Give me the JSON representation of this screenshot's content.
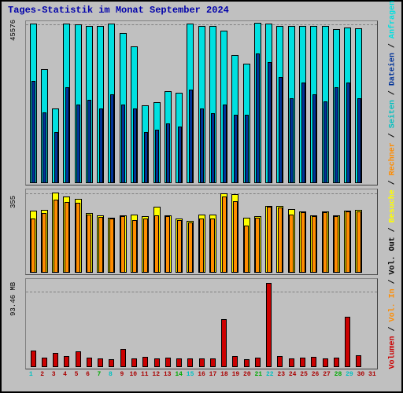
{
  "title": "Tages-Statistik im Monat September 2024",
  "colors": {
    "frame_bg": "#c0c0c0",
    "panel_bg": "#c0c0c0",
    "title_color": "#0000aa",
    "anfragen": "#00e0e0",
    "dateien": "#003399",
    "seiten": "#00c0c0",
    "besuche": "#ffff00",
    "rechner": "#ff8c00",
    "vol_in": "#cc0000",
    "vol_out": "#000000",
    "volumen": "#cc0000",
    "border": "#000000"
  },
  "panel1": {
    "y_label": "45576",
    "max": 47000,
    "days": [
      {
        "anfragen": 46700,
        "dateien": 30000
      },
      {
        "anfragen": 33300,
        "dateien": 20800
      },
      {
        "anfragen": 22000,
        "dateien": 15000
      },
      {
        "anfragen": 46800,
        "dateien": 28000
      },
      {
        "anfragen": 46500,
        "dateien": 23000
      },
      {
        "anfragen": 46000,
        "dateien": 24500
      },
      {
        "anfragen": 46000,
        "dateien": 22000
      },
      {
        "anfragen": 46700,
        "dateien": 26000
      },
      {
        "anfragen": 44000,
        "dateien": 23000
      },
      {
        "anfragen": 40000,
        "dateien": 22000
      },
      {
        "anfragen": 22700,
        "dateien": 15000
      },
      {
        "anfragen": 23700,
        "dateien": 15600
      },
      {
        "anfragen": 27000,
        "dateien": 17500
      },
      {
        "anfragen": 26500,
        "dateien": 16500
      },
      {
        "anfragen": 46700,
        "dateien": 27500
      },
      {
        "anfragen": 46000,
        "dateien": 22000
      },
      {
        "anfragen": 46000,
        "dateien": 20500
      },
      {
        "anfragen": 44600,
        "dateien": 23000
      },
      {
        "anfragen": 37500,
        "dateien": 20000
      },
      {
        "anfragen": 35000,
        "dateien": 20000
      },
      {
        "anfragen": 47000,
        "dateien": 38000
      },
      {
        "anfragen": 46800,
        "dateien": 35500
      },
      {
        "anfragen": 46000,
        "dateien": 31000
      },
      {
        "anfragen": 46000,
        "dateien": 25000
      },
      {
        "anfragen": 46000,
        "dateien": 29500
      },
      {
        "anfragen": 46100,
        "dateien": 26000
      },
      {
        "anfragen": 46000,
        "dateien": 24000
      },
      {
        "anfragen": 45200,
        "dateien": 28000
      },
      {
        "anfragen": 45700,
        "dateien": 29500
      },
      {
        "anfragen": 45500,
        "dateien": 25000
      }
    ]
  },
  "panel2": {
    "y_label": "355",
    "max": 370,
    "days": [
      {
        "besuche": 280,
        "rechner": 245
      },
      {
        "besuche": 285,
        "rechner": 270
      },
      {
        "besuche": 363,
        "rechner": 330
      },
      {
        "besuche": 345,
        "rechner": 320
      },
      {
        "besuche": 335,
        "rechner": 315
      },
      {
        "besuche": 270,
        "rechner": 262
      },
      {
        "besuche": 260,
        "rechner": 253
      },
      {
        "besuche": 250,
        "rechner": 245
      },
      {
        "besuche": 260,
        "rechner": 255
      },
      {
        "besuche": 265,
        "rechner": 240
      },
      {
        "besuche": 255,
        "rechner": 245
      },
      {
        "besuche": 298,
        "rechner": 260
      },
      {
        "besuche": 260,
        "rechner": 255
      },
      {
        "besuche": 245,
        "rechner": 240
      },
      {
        "besuche": 235,
        "rechner": 228
      },
      {
        "besuche": 265,
        "rechner": 245
      },
      {
        "besuche": 265,
        "rechner": 245
      },
      {
        "besuche": 360,
        "rechner": 345
      },
      {
        "besuche": 355,
        "rechner": 325
      },
      {
        "besuche": 250,
        "rechner": 215
      },
      {
        "besuche": 255,
        "rechner": 248
      },
      {
        "besuche": 303,
        "rechner": 298
      },
      {
        "besuche": 302,
        "rechner": 295
      },
      {
        "besuche": 290,
        "rechner": 265
      },
      {
        "besuche": 278,
        "rechner": 275
      },
      {
        "besuche": 260,
        "rechner": 255
      },
      {
        "besuche": 278,
        "rechner": 275
      },
      {
        "besuche": 258,
        "rechner": 255
      },
      {
        "besuche": 280,
        "rechner": 278
      },
      {
        "besuche": 285,
        "rechner": 278
      }
    ]
  },
  "panel3": {
    "y_label": "93.46 MB",
    "max": 110,
    "days": [
      {
        "vol": 21
      },
      {
        "vol": 12
      },
      {
        "vol": 18
      },
      {
        "vol": 14
      },
      {
        "vol": 20
      },
      {
        "vol": 12
      },
      {
        "vol": 11
      },
      {
        "vol": 10
      },
      {
        "vol": 23
      },
      {
        "vol": 11
      },
      {
        "vol": 13
      },
      {
        "vol": 11
      },
      {
        "vol": 12
      },
      {
        "vol": 11
      },
      {
        "vol": 11
      },
      {
        "vol": 11
      },
      {
        "vol": 11
      },
      {
        "vol": 61
      },
      {
        "vol": 14
      },
      {
        "vol": 10
      },
      {
        "vol": 12
      },
      {
        "vol": 107
      },
      {
        "vol": 14
      },
      {
        "vol": 11
      },
      {
        "vol": 12
      },
      {
        "vol": 13
      },
      {
        "vol": 11
      },
      {
        "vol": 12
      },
      {
        "vol": 64
      },
      {
        "vol": 15
      }
    ]
  },
  "x_axis": {
    "days": [
      1,
      2,
      3,
      4,
      5,
      6,
      7,
      8,
      9,
      10,
      11,
      12,
      13,
      14,
      15,
      16,
      17,
      18,
      19,
      20,
      21,
      22,
      23,
      24,
      25,
      26,
      27,
      28,
      29,
      30,
      31
    ],
    "sundays": [
      1,
      8,
      15,
      22,
      29
    ],
    "saturdays": [
      7,
      14,
      21,
      28
    ],
    "sun_color": "#00c0c0",
    "sat_color": "#00aa00",
    "weekday_color": "#aa0000"
  },
  "legend": [
    {
      "text": "Volumen",
      "color": "#cc0000"
    },
    {
      "text": "Vol. In",
      "color": "#ff8c00"
    },
    {
      "text": "Vol. Out",
      "color": "#000000"
    },
    {
      "text": "Besuche",
      "color": "#ffff00"
    },
    {
      "text": "Rechner",
      "color": "#ff8c00"
    },
    {
      "text": "Seiten",
      "color": "#00c0c0"
    },
    {
      "text": "Dateien",
      "color": "#003399"
    },
    {
      "text": "Anfragen",
      "color": "#00e0e0"
    }
  ]
}
